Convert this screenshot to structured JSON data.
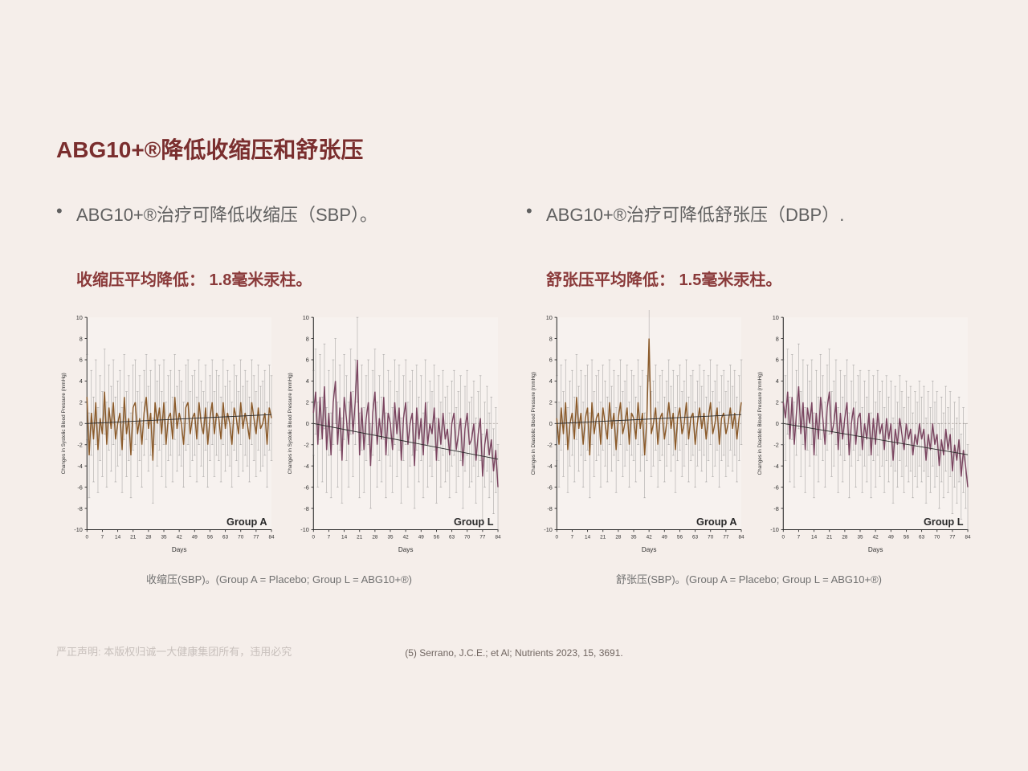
{
  "title": "ABG10+®降低收缩压和舒张压",
  "left": {
    "bullet": "ABG10+®治疗可降低收缩压（SBP）。",
    "highlight": "收缩压平均降低： 1.8毫米汞柱。",
    "caption": "收缩压(SBP)。(Group A = Placebo; Group L = ABG10+®)"
  },
  "right": {
    "bullet": "ABG10+®治疗可降低舒张压（DBP）.",
    "highlight": "舒张压平均降低： 1.5毫米汞柱。",
    "caption": "舒张压(SBP)。(Group A = Placebo; Group L = ABG10+®)"
  },
  "chart_common": {
    "ylabel_sbp": "Changes in Systolic Blood Pressure (mmHg)",
    "ylabel_dbp": "Changes in Diastolic Blood Pressure (mmHg)",
    "xlabel": "Days",
    "ylim": [
      -10,
      10
    ],
    "ytick_step": 2,
    "xlim": [
      0,
      84
    ],
    "xticks": [
      0,
      7,
      14,
      21,
      28,
      35,
      42,
      49,
      56,
      63,
      70,
      77,
      84
    ],
    "group_a_label": "Group A",
    "group_l_label": "Group L",
    "group_a_color": "#8a5a2a",
    "group_l_color": "#7a4560",
    "errorbar_color": "#707070",
    "axis_color": "#303030",
    "background": "#f5eeea",
    "errorbar_height_approx": 4.0
  },
  "charts": {
    "sbp_a": {
      "label": "Group A",
      "color": "#8a5a2a",
      "trend_slope": 0.01,
      "values": [
        2.5,
        -3.0,
        1.0,
        -1.5,
        2.0,
        -2.5,
        0.5,
        -1.0,
        3.0,
        -2.0,
        1.5,
        -0.5,
        2.0,
        -1.5,
        0.0,
        1.0,
        -2.5,
        2.5,
        -1.0,
        0.5,
        -3.0,
        1.5,
        2.0,
        -1.0,
        0.5,
        -2.0,
        1.0,
        2.5,
        -0.5,
        1.0,
        -3.5,
        2.0,
        0.0,
        1.5,
        -1.0,
        2.0,
        -2.0,
        0.5,
        1.0,
        -1.5,
        2.5,
        -0.5,
        1.0,
        0.0,
        -2.0,
        1.5,
        2.0,
        -1.0,
        0.5,
        1.0,
        -1.5,
        2.0,
        0.0,
        -1.0,
        1.5,
        -2.0,
        0.5,
        2.0,
        -1.0,
        1.0,
        0.5,
        -1.5,
        2.0,
        -0.5,
        1.0,
        0.0,
        -2.0,
        1.5,
        0.5,
        -1.0,
        2.0,
        -0.5,
        1.0,
        0.0,
        -1.5,
        2.0,
        0.5,
        -1.0,
        1.5,
        -0.5,
        0.0,
        1.0,
        -2.0,
        1.5,
        0.5
      ]
    },
    "sbp_l": {
      "label": "Group L",
      "color": "#7a4560",
      "trend_slope": -0.04,
      "values": [
        1.0,
        3.0,
        -2.0,
        2.5,
        -1.5,
        3.5,
        -2.5,
        1.0,
        -3.0,
        2.0,
        4.0,
        -2.0,
        1.5,
        -3.5,
        2.5,
        0.5,
        -2.0,
        3.0,
        -1.0,
        2.0,
        6.0,
        -3.0,
        1.5,
        -2.5,
        0.5,
        2.0,
        -4.0,
        1.0,
        3.0,
        -2.0,
        0.5,
        -1.5,
        2.5,
        -3.0,
        1.0,
        0.0,
        -2.5,
        2.0,
        -1.0,
        1.5,
        -3.5,
        0.5,
        2.0,
        -2.0,
        0.0,
        1.0,
        -4.0,
        1.5,
        -1.5,
        0.5,
        -3.0,
        2.0,
        -2.0,
        0.0,
        -1.0,
        1.5,
        -3.5,
        0.5,
        -2.0,
        1.0,
        -1.5,
        -0.5,
        -3.0,
        0.0,
        1.0,
        -2.5,
        -1.0,
        0.5,
        -4.0,
        -0.5,
        1.0,
        -2.0,
        -1.5,
        0.0,
        -3.5,
        -1.0,
        0.5,
        -5.0,
        -2.0,
        -0.5,
        -3.0,
        -1.5,
        -4.5,
        -2.5,
        -6.0
      ]
    },
    "dbp_a": {
      "label": "Group A",
      "color": "#8a5a2a",
      "trend_slope": 0.01,
      "values": [
        0.5,
        -2.0,
        1.5,
        -1.0,
        2.0,
        -2.5,
        0.0,
        1.0,
        -1.5,
        2.5,
        -0.5,
        1.0,
        -2.0,
        0.5,
        1.5,
        -3.0,
        2.0,
        -1.0,
        0.5,
        1.0,
        -2.0,
        1.5,
        0.0,
        -1.5,
        2.0,
        -0.5,
        1.0,
        -2.5,
        0.5,
        2.0,
        -1.0,
        0.0,
        1.5,
        -2.0,
        1.0,
        0.5,
        -1.5,
        2.0,
        -0.5,
        1.0,
        -3.0,
        0.5,
        8.0,
        -1.0,
        0.0,
        1.5,
        -2.0,
        0.5,
        1.0,
        -1.5,
        0.0,
        2.0,
        -0.5,
        1.0,
        -2.5,
        0.5,
        1.5,
        -1.0,
        0.0,
        2.0,
        -1.5,
        0.5,
        1.0,
        -2.0,
        0.0,
        1.5,
        -0.5,
        1.0,
        -1.5,
        0.5,
        2.0,
        -1.0,
        0.0,
        1.5,
        -2.0,
        0.5,
        1.0,
        -1.0,
        0.0,
        1.5,
        -0.5,
        1.0,
        -1.5,
        0.5,
        2.0
      ]
    },
    "dbp_l": {
      "label": "Group L",
      "color": "#7a4560",
      "trend_slope": -0.035,
      "values": [
        2.0,
        0.5,
        3.0,
        -1.5,
        2.5,
        -2.0,
        1.0,
        3.5,
        -1.0,
        2.0,
        -2.5,
        1.5,
        0.0,
        2.0,
        -3.0,
        1.0,
        -1.5,
        2.5,
        0.5,
        -2.0,
        1.5,
        3.0,
        -1.0,
        0.0,
        2.0,
        -2.5,
        1.0,
        -1.5,
        0.5,
        2.0,
        -3.0,
        0.0,
        1.5,
        -2.0,
        0.5,
        1.0,
        -2.5,
        0.0,
        -1.5,
        1.0,
        -3.0,
        0.5,
        -2.0,
        1.0,
        -1.0,
        0.0,
        -2.5,
        0.5,
        -1.5,
        0.0,
        -3.5,
        -0.5,
        -2.0,
        0.5,
        -1.0,
        -2.5,
        0.0,
        -1.5,
        -0.5,
        -3.0,
        -1.0,
        -2.0,
        0.0,
        -1.5,
        -0.5,
        -3.5,
        -1.0,
        -2.5,
        0.0,
        -2.0,
        -1.0,
        -4.0,
        -1.5,
        -3.0,
        -0.5,
        -2.5,
        -1.0,
        -4.5,
        -2.0,
        -3.5,
        -1.5,
        -5.0,
        -2.5,
        -4.0,
        -6.0
      ]
    }
  },
  "footer": {
    "left": "严正声明: 本版权归诚一大健康集团所有，违用必究",
    "center": "(5) Serrano, J.C.E.; et Al; Nutrients 2023, 15, 3691."
  }
}
